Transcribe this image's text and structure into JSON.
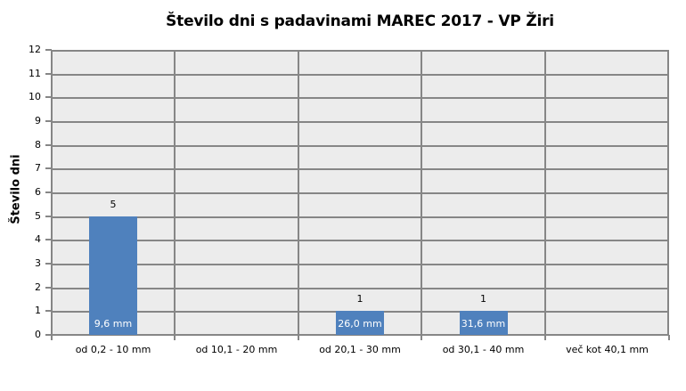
{
  "chart_data": {
    "type": "bar",
    "title": "Število dni s padavinami  MAREC 2017 - VP Žiri",
    "xlabel": "",
    "ylabel": "Število dni",
    "ylim": [
      0,
      12
    ],
    "yticks": [
      "0",
      "1",
      "2",
      "3",
      "4",
      "5",
      "6",
      "7",
      "8",
      "9",
      "10",
      "11",
      "12"
    ],
    "grid": true,
    "legend": null,
    "categories": [
      "od 0,2 - 10 mm",
      "od 10,1 - 20 mm",
      "od 20,1 - 30 mm",
      "od 30,1 - 40 mm",
      "več kot 40,1 mm"
    ],
    "values": [
      5,
      0,
      1,
      1,
      0
    ],
    "value_labels": [
      "5",
      "",
      "1",
      "1",
      ""
    ],
    "bar_annotations": [
      "9,6 mm",
      "",
      "26,0 mm",
      "31,6 mm",
      ""
    ],
    "bar_color": "#4f81bd"
  }
}
